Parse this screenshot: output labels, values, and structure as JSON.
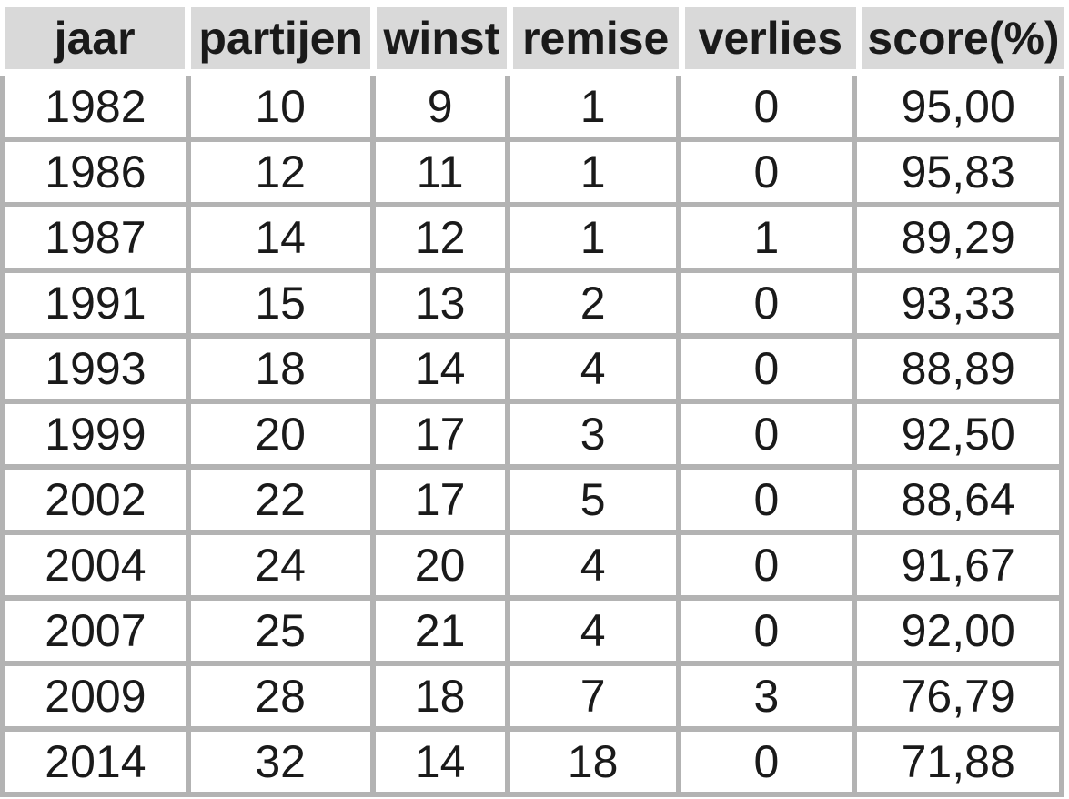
{
  "chart_data": {
    "type": "table",
    "title": "",
    "columns": [
      "jaar",
      "partijen",
      "winst",
      "remise",
      "verlies",
      "score(%)"
    ],
    "rows": [
      [
        "1982",
        "10",
        "9",
        "1",
        "0",
        "95,00"
      ],
      [
        "1986",
        "12",
        "11",
        "1",
        "0",
        "95,83"
      ],
      [
        "1987",
        "14",
        "12",
        "1",
        "1",
        "89,29"
      ],
      [
        "1991",
        "15",
        "13",
        "2",
        "0",
        "93,33"
      ],
      [
        "1993",
        "18",
        "14",
        "4",
        "0",
        "88,89"
      ],
      [
        "1999",
        "20",
        "17",
        "3",
        "0",
        "92,50"
      ],
      [
        "2002",
        "22",
        "17",
        "5",
        "0",
        "88,64"
      ],
      [
        "2004",
        "24",
        "20",
        "4",
        "0",
        "91,67"
      ],
      [
        "2007",
        "25",
        "21",
        "4",
        "0",
        "92,00"
      ],
      [
        "2009",
        "28",
        "18",
        "7",
        "3",
        "76,79"
      ],
      [
        "2014",
        "32",
        "14",
        "18",
        "0",
        "71,88"
      ]
    ]
  },
  "colors": {
    "header_bg": "#d9d9d9",
    "border_gray": "#b3b3b3",
    "text_color": "#1a1a1a",
    "page_bg": "#ffffff"
  }
}
